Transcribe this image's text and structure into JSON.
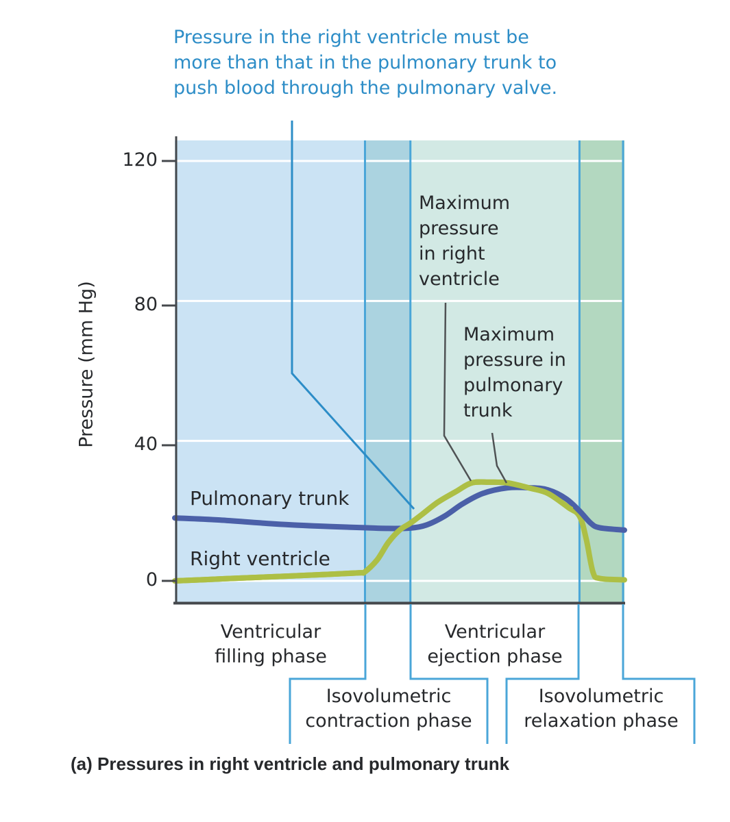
{
  "figure": {
    "annotation_top": "Pressure in the right ventricle must be\nmore than that in the pulmonary trunk to\npush blood through the pulmonary valve.",
    "ylabel": "Pressure (mm Hg)",
    "curve_labels": {
      "pulmonary_trunk": "Pulmonary trunk",
      "right_ventricle": "Right ventricle"
    },
    "peak_labels": {
      "right_ventricle": "Maximum\npressure\nin right\nventricle",
      "pulmonary_trunk": "Maximum\npressure in\npulmonary\ntrunk"
    },
    "phase_labels": {
      "filling": "Ventricular\nfilling phase",
      "ejection": "Ventricular\nejection phase",
      "contraction": "Isovolumetric\ncontraction phase",
      "relaxation": "Isovolumetric\nrelaxation phase"
    },
    "caption": "(a) Pressures in right ventricle and pulmonary trunk"
  },
  "colors": {
    "band_filling": "#cbe3f4",
    "band_contraction": "#abd3e0",
    "band_ejection": "#d2e9e4",
    "band_relaxation": "#b3d8c0",
    "divider_blue": "#4aa6d8",
    "annotation_blue": "#2d8dc7",
    "pulmonary_trunk_curve": "#4b60a8",
    "right_ventricle_curve": "#adbf45",
    "gridline": "#ffffff",
    "axis": "#45484c",
    "leader_gray": "#4f5254",
    "text_dark": "#27292c"
  },
  "chart_data": {
    "type": "line",
    "title": "(a) Pressures in right ventricle and pulmonary trunk",
    "xlabel": "",
    "ylabel": "Pressure (mm Hg)",
    "yticks": [
      0,
      40,
      80,
      120
    ],
    "ylim": [
      -6,
      126
    ],
    "x_units": "fraction of displayed cardiac cycle",
    "grid": "horizontal white gridlines at each y tick",
    "legend_position": "labels drawn on curves",
    "phases": [
      {
        "name": "Ventricular filling phase",
        "start": 0,
        "end": 0.423
      },
      {
        "name": "Isovolumetric contraction phase",
        "start": 0.423,
        "end": 0.524
      },
      {
        "name": "Ventricular ejection phase",
        "start": 0.524,
        "end": 0.9
      },
      {
        "name": "Isovolumetric relaxation phase",
        "start": 0.9,
        "end": 1
      }
    ],
    "series": [
      {
        "name": "Pulmonary trunk",
        "color": "#4b60a8",
        "x": [
          0,
          0.1,
          0.22,
          0.33,
          0.423,
          0.47,
          0.524,
          0.56,
          0.6,
          0.64,
          0.685,
          0.74,
          0.79,
          0.83,
          0.87,
          0.9,
          0.925,
          0.945,
          1.0
        ],
        "y": [
          18,
          17.4,
          16.3,
          15.6,
          15.2,
          15.0,
          15.1,
          16,
          18.5,
          22,
          25,
          26.6,
          26.6,
          26,
          23.5,
          20,
          16.5,
          15.2,
          14.5
        ]
      },
      {
        "name": "Right ventricle",
        "color": "#adbf45",
        "x": [
          0,
          0.11,
          0.22,
          0.33,
          0.41,
          0.423,
          0.45,
          0.475,
          0.5,
          0.524,
          0.55,
          0.585,
          0.625,
          0.66,
          0.7,
          0.74,
          0.79,
          0.83,
          0.875,
          0.9,
          0.915,
          0.93,
          0.945,
          1.0
        ],
        "y": [
          0,
          0.6,
          1.2,
          1.8,
          2.3,
          2.6,
          6,
          11,
          14.5,
          16.5,
          19,
          22.5,
          25.5,
          28,
          28.2,
          28,
          26.5,
          25,
          21,
          18.5,
          12,
          2.5,
          0.7,
          0.3
        ]
      }
    ],
    "annotations": [
      {
        "text": "Pressure in the right ventricle must be more than that in the pulmonary trunk to push blood through the pulmonary valve.",
        "points_to": "crossing of curves at start of ejection phase"
      },
      {
        "text": "Maximum pressure in right ventricle",
        "value_mmHg": 28
      },
      {
        "text": "Maximum pressure in pulmonary trunk",
        "value_mmHg": 27
      }
    ]
  }
}
